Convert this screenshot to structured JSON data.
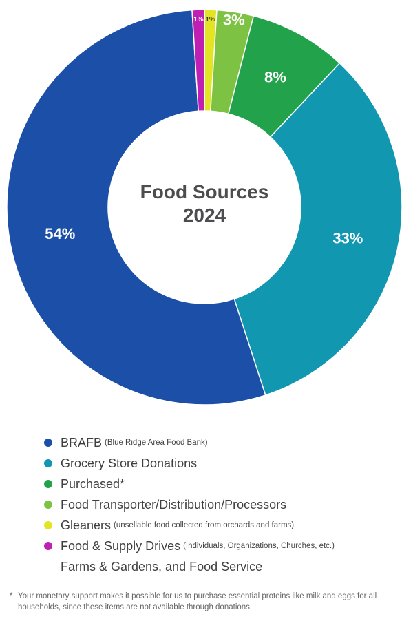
{
  "chart_data": {
    "type": "pie",
    "title": "Food Sources 2024",
    "categories": [
      "BRAFB",
      "Grocery Store Donations",
      "Purchased*",
      "Food Transporter/Distribution/Processors",
      "Gleaners",
      "Food & Supply Drives"
    ],
    "details": [
      "(Blue Ridge Area Food Bank)",
      null,
      null,
      null,
      "(unsellable food collected from orchards and farms)",
      "(Individuals, Organizations, Churches, etc.)"
    ],
    "legend_continuation": "Farms & Gardens, and Food Service",
    "values": [
      54,
      33,
      8,
      3,
      1,
      1
    ],
    "value_labels": [
      "54%",
      "33%",
      "8%",
      "3%",
      "1%",
      "1%"
    ],
    "colors": [
      "#1b4fa8",
      "#1197b0",
      "#22a24b",
      "#7dc243",
      "#e3e524",
      "#c01fb3"
    ],
    "footnote_marker": "*",
    "footnote": "Your monetary support makes it possible for us to purchase essential proteins like milk and eggs for all households, since these items are not available through donations."
  }
}
